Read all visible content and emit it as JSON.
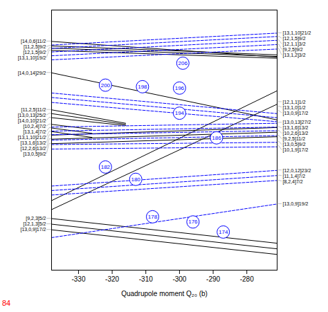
{
  "chart_data": {
    "type": "line",
    "xlabel": "Quadrupole moment Q₂₀ (b)",
    "xlim": [
      -338,
      -271
    ],
    "ylim": [
      -0.08,
      1.08
    ],
    "xticks": [
      -330,
      -320,
      -310,
      -300,
      -290,
      -280
    ],
    "tick_labels": "x",
    "series": [
      {
        "x": [
          -338,
          -271
        ],
        "values": [
          0.94,
          0.87
        ],
        "color": "black",
        "line_style": "solid",
        "label": "[14,0,6]11/2",
        "label_y": 0.94
      },
      {
        "x": [
          -338,
          -271
        ],
        "values": [
          0.92,
          0.88
        ],
        "color": "black",
        "line_style": "solid",
        "label": "[11,2,5]9/2",
        "label_y": 0.92
      },
      {
        "x": [
          -338,
          -271
        ],
        "values": [
          0.91,
          0.873
        ],
        "color": "black",
        "line_style": "solid",
        "label": "[12,1,5]9/2",
        "label_y": 0.91
      },
      {
        "x": [
          -338,
          -271
        ],
        "values": [
          0.9,
          0.865
        ],
        "color": "black",
        "line_style": "solid",
        "label": "[13,1,10]19/2",
        "label_y": 0.9
      },
      {
        "x": [
          -338,
          -271
        ],
        "values": [
          0.8,
          0.59
        ],
        "color": "black",
        "line_style": "solid",
        "label": "[14,0,14]29/2",
        "label_y": 0.8
      },
      {
        "x": [
          -338,
          -316
        ],
        "values": [
          0.635,
          0.575
        ],
        "color": "black",
        "line_style": "solid",
        "label": "[11,2,5]11/2",
        "label_y": 0.635
      },
      {
        "x": [
          -338,
          -316
        ],
        "values": [
          0.618,
          0.57
        ],
        "color": "black",
        "line_style": "solid",
        "label": "[13,0,13]25/2",
        "label_y": 0.618
      },
      {
        "x": [
          -338,
          -316
        ],
        "values": [
          0.6,
          0.565
        ],
        "color": "black",
        "line_style": "solid",
        "label": "[14,0,10]21/2",
        "label_y": 0.6
      },
      {
        "x": [
          -338,
          -326
        ],
        "values": [
          0.57,
          0.548
        ],
        "color": "black",
        "line_style": "solid",
        "label": "[10,2,4]7/2",
        "label_y": 0.57
      },
      {
        "x": [
          -338,
          -326
        ],
        "values": [
          0.554,
          0.53
        ],
        "color": "black",
        "line_style": "solid",
        "label": "[13,1,4]7/2",
        "label_y": 0.554
      },
      {
        "x": [
          -338,
          -326
        ],
        "values": [
          0.538,
          0.512
        ],
        "color": "black",
        "line_style": "solid",
        "label": "[13,1,10]21/2",
        "label_y": 0.538
      },
      {
        "x": [
          -338,
          -271
        ],
        "values": [
          0.522,
          0.556
        ],
        "color": "black",
        "line_style": "solid",
        "label": "[13,1,6]13/2",
        "label_y": 0.522
      },
      {
        "x": [
          -338,
          -271
        ],
        "values": [
          0.504,
          0.535
        ],
        "color": "black",
        "line_style": "solid",
        "label": "[12,2,6]13/2",
        "label_y": 0.504
      },
      {
        "x": [
          -338,
          -271
        ],
        "values": [
          0.484,
          0.515
        ],
        "color": "black",
        "line_style": "solid",
        "label": "[13,0,5]9/2",
        "label_y": 0.484
      },
      {
        "x": [
          -338,
          -271
        ],
        "values": [
          0.23,
          0.72
        ],
        "color": "black",
        "line_style": "solid"
      },
      {
        "x": [
          -338,
          -271
        ],
        "values": [
          0.19,
          0.66
        ],
        "color": "black",
        "line_style": "solid"
      },
      {
        "x": [
          -338,
          -271
        ],
        "values": [
          0.15,
          0.04
        ],
        "color": "black",
        "line_style": "solid",
        "label": "[9,2,3]5/2",
        "label_y": 0.15
      },
      {
        "x": [
          -338,
          -271
        ],
        "values": [
          0.125,
          0.015
        ],
        "color": "black",
        "line_style": "solid",
        "label": "[12,1,3]5/2",
        "label_y": 0.125
      },
      {
        "x": [
          -338,
          -271
        ],
        "values": [
          0.1,
          -0.01
        ],
        "color": "black",
        "line_style": "solid",
        "label": "[13,0,9]17/2",
        "label_y": 0.1
      },
      {
        "x": [
          -338,
          -271
        ],
        "values": [
          0.924,
          0.977
        ],
        "color": "blue",
        "line_style": "dashed",
        "label": "[13,1,10]21/2",
        "label_y": 0.977
      },
      {
        "x": [
          -338,
          -271
        ],
        "values": [
          0.909,
          0.962
        ],
        "color": "blue",
        "line_style": "dashed",
        "label": "[12,1,5]9/2",
        "label_y": 0.962
      },
      {
        "x": [
          -338,
          -271
        ],
        "values": [
          0.893,
          0.945
        ],
        "color": "blue",
        "line_style": "dashed",
        "label": "[12,1,1]3/2",
        "label_y": 0.945
      },
      {
        "x": [
          -338,
          -271
        ],
        "values": [
          0.876,
          0.926
        ],
        "color": "blue",
        "line_style": "dashed",
        "label": "[9,2,5]9/2",
        "label_y": 0.926
      },
      {
        "x": [
          -338,
          -271
        ],
        "values": [
          0.858,
          0.906
        ],
        "color": "blue",
        "line_style": "dashed",
        "label": "[13,1,2]3/2",
        "label_y": 0.906
      },
      {
        "x": [
          -338,
          -271
        ],
        "values": [
          0.71,
          0.618
        ],
        "color": "blue",
        "line_style": "dashed",
        "label": "[12,1,1]1/2",
        "label_y": 0.67
      },
      {
        "x": [
          -338,
          -271
        ],
        "values": [
          0.69,
          0.6
        ],
        "color": "blue",
        "line_style": "dashed",
        "label": "[13,1,0]1/2",
        "label_y": 0.65
      },
      {
        "x": [
          -338,
          -271
        ],
        "values": [
          0.668,
          0.582
        ],
        "color": "blue",
        "line_style": "dashed",
        "label": "[13,0,9]17/2",
        "label_y": 0.63
      },
      {
        "x": [
          -338,
          -271
        ],
        "values": [
          0.558,
          0.575
        ],
        "color": "blue",
        "line_style": "dashed",
        "label": "[13,0,13]27/2",
        "label_y": 0.578
      },
      {
        "x": [
          -338,
          -271
        ],
        "values": [
          0.54,
          0.558
        ],
        "color": "blue",
        "line_style": "dashed",
        "label": "[13,1,6]13/2",
        "label_y": 0.558
      },
      {
        "x": [
          -338,
          -271
        ],
        "values": [
          0.524,
          0.542
        ],
        "color": "blue",
        "line_style": "dashed",
        "label": "[10,2,6]13/2",
        "label_y": 0.542
      },
      {
        "x": [
          -338,
          -271
        ],
        "values": [
          0.5,
          0.52
        ],
        "color": "blue",
        "line_style": "dashed",
        "label": "[9,2,5]11/2",
        "label_y": 0.52
      },
      {
        "x": [
          -338,
          -271
        ],
        "values": [
          0.48,
          0.49
        ],
        "color": "blue",
        "line_style": "dashed",
        "label": "[13,0,5]9/2",
        "label_y": 0.493
      },
      {
        "x": [
          -338,
          -271
        ],
        "values": [
          0.46,
          0.47
        ],
        "color": "blue",
        "line_style": "dashed",
        "label": "[10,1,9]17/2",
        "label_y": 0.473
      },
      {
        "x": [
          -338,
          -271
        ],
        "values": [
          0.295,
          0.365
        ],
        "color": "blue",
        "line_style": "dashed",
        "label": "[12,0,12]23/2",
        "label_y": 0.365
      },
      {
        "x": [
          -338,
          -271
        ],
        "values": [
          0.275,
          0.342
        ],
        "color": "blue",
        "line_style": "dashed",
        "label": "[11,1,4]7/2",
        "label_y": 0.342
      },
      {
        "x": [
          -338,
          -271
        ],
        "values": [
          0.255,
          0.32
        ],
        "color": "blue",
        "line_style": "dashed",
        "label": "[8,2,4]7/2",
        "label_y": 0.32
      },
      {
        "x": [
          -338,
          -271
        ],
        "values": [
          0.065,
          0.215
        ],
        "color": "blue",
        "line_style": "dashed",
        "label": "[13,0,9]19/2",
        "label_y": 0.215
      }
    ],
    "annotations": [
      {
        "text": "206",
        "x": -299,
        "y": 0.843,
        "color": "blue"
      },
      {
        "text": "200",
        "x": -322,
        "y": 0.745,
        "color": "blue"
      },
      {
        "text": "198",
        "x": -311,
        "y": 0.738,
        "color": "blue"
      },
      {
        "text": "196",
        "x": -300,
        "y": 0.732,
        "color": "blue"
      },
      {
        "text": "194",
        "x": -300,
        "y": 0.62,
        "color": "blue"
      },
      {
        "text": "186",
        "x": -289,
        "y": 0.51,
        "color": "blue"
      },
      {
        "text": "182",
        "x": -322,
        "y": 0.38,
        "color": "blue"
      },
      {
        "text": "180",
        "x": -313,
        "y": 0.325,
        "color": "blue"
      },
      {
        "text": "178",
        "x": -308,
        "y": 0.158,
        "color": "blue"
      },
      {
        "text": "176",
        "x": -296,
        "y": 0.135,
        "color": "blue"
      },
      {
        "text": "174",
        "x": -287,
        "y": 0.09,
        "color": "blue"
      },
      {
        "text": "84",
        "color": "red"
      }
    ]
  }
}
